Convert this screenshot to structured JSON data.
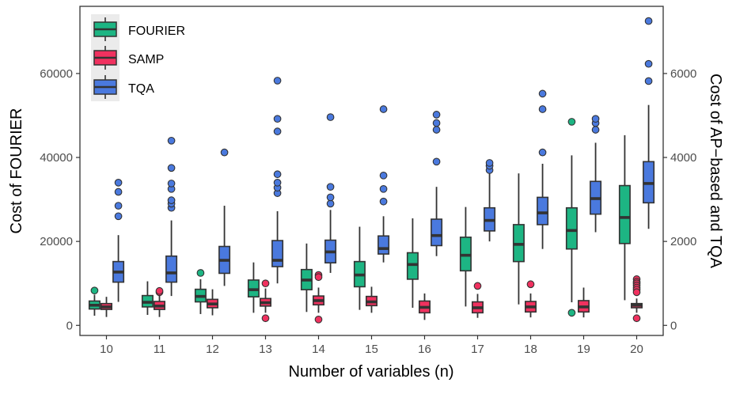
{
  "chart_data": {
    "type": "boxplot",
    "xlabel": "Number of variables (n)",
    "ylabel_left": "Cost of FOURIER",
    "ylabel_right": "Cost of AP−based and TQA",
    "categories": [
      "10",
      "11",
      "12",
      "13",
      "14",
      "15",
      "16",
      "17",
      "18",
      "19",
      "20"
    ],
    "left_axis": {
      "min": -2400,
      "max": 76000,
      "ticks": [
        0,
        20000,
        40000,
        60000
      ]
    },
    "right_axis": {
      "min": -240,
      "max": 7600,
      "ticks": [
        0,
        2000,
        4000,
        6000
      ]
    },
    "legend": {
      "placement": "top-left",
      "entries": [
        "FOURIER",
        "SAMP",
        "TQA"
      ]
    },
    "grid": false,
    "series": [
      {
        "name": "FOURIER",
        "axis": "left",
        "color": "#1db583",
        "boxes": [
          {
            "q1": 3900,
            "median": 4800,
            "q3": 5800,
            "wmin": 2300,
            "wmax": 7300,
            "outliers": [
              8300
            ]
          },
          {
            "q1": 4400,
            "median": 5500,
            "q3": 7100,
            "wmin": 2500,
            "wmax": 10500,
            "outliers": []
          },
          {
            "q1": 5600,
            "median": 6900,
            "q3": 8600,
            "wmin": 2700,
            "wmax": 11000,
            "outliers": [
              12500
            ]
          },
          {
            "q1": 6800,
            "median": 8500,
            "q3": 10800,
            "wmin": 3000,
            "wmax": 15000,
            "outliers": []
          },
          {
            "q1": 8500,
            "median": 10800,
            "q3": 13300,
            "wmin": 3200,
            "wmax": 19500,
            "outliers": []
          },
          {
            "q1": 9200,
            "median": 12000,
            "q3": 15200,
            "wmin": 3700,
            "wmax": 23500,
            "outliers": []
          },
          {
            "q1": 11000,
            "median": 14500,
            "q3": 17300,
            "wmin": 4200,
            "wmax": 25500,
            "outliers": []
          },
          {
            "q1": 13000,
            "median": 16700,
            "q3": 21000,
            "wmin": 4500,
            "wmax": 28200,
            "outliers": []
          },
          {
            "q1": 15200,
            "median": 19300,
            "q3": 24000,
            "wmin": 5000,
            "wmax": 36200,
            "outliers": []
          },
          {
            "q1": 18200,
            "median": 22600,
            "q3": 28000,
            "wmin": 5500,
            "wmax": 40500,
            "outliers": [
              48500,
              3000
            ]
          },
          {
            "q1": 19500,
            "median": 25700,
            "q3": 33300,
            "wmin": 6000,
            "wmax": 45300,
            "outliers": []
          }
        ]
      },
      {
        "name": "SAMP",
        "axis": "right",
        "color": "#f0315f",
        "boxes": [
          {
            "q1": 380,
            "median": 440,
            "q3": 520,
            "wmin": 200,
            "wmax": 680,
            "outliers": []
          },
          {
            "q1": 380,
            "median": 460,
            "q3": 570,
            "wmin": 200,
            "wmax": 750,
            "outliers": [
              790,
              820
            ]
          },
          {
            "q1": 420,
            "median": 510,
            "q3": 620,
            "wmin": 240,
            "wmax": 860,
            "outliers": []
          },
          {
            "q1": 460,
            "median": 540,
            "q3": 640,
            "wmin": 300,
            "wmax": 880,
            "outliers": [
              1000,
              170
            ]
          },
          {
            "q1": 490,
            "median": 590,
            "q3": 700,
            "wmin": 300,
            "wmax": 900,
            "outliers": [
              1200,
              1150,
              140
            ]
          },
          {
            "q1": 470,
            "median": 560,
            "q3": 690,
            "wmin": 300,
            "wmax": 920,
            "outliers": []
          },
          {
            "q1": 300,
            "median": 430,
            "q3": 580,
            "wmin": 130,
            "wmax": 760,
            "outliers": []
          },
          {
            "q1": 300,
            "median": 420,
            "q3": 560,
            "wmin": 180,
            "wmax": 750,
            "outliers": [
              940
            ]
          },
          {
            "q1": 320,
            "median": 440,
            "q3": 570,
            "wmin": 190,
            "wmax": 760,
            "outliers": [
              980
            ]
          },
          {
            "q1": 320,
            "median": 440,
            "q3": 590,
            "wmin": 190,
            "wmax": 900,
            "outliers": []
          },
          {
            "q1": 420,
            "median": 480,
            "q3": 520,
            "wmin": 300,
            "wmax": 640,
            "outliers": [
              1100,
              1040,
              1000,
              950,
              900,
              850,
              790,
              170
            ]
          }
        ]
      },
      {
        "name": "TQA",
        "axis": "right",
        "color": "#4a79de",
        "boxes": [
          {
            "q1": 1030,
            "median": 1270,
            "q3": 1520,
            "wmin": 560,
            "wmax": 2150,
            "outliers": [
              2600,
              2850,
              3180,
              3400
            ]
          },
          {
            "q1": 1030,
            "median": 1250,
            "q3": 1650,
            "wmin": 700,
            "wmax": 2500,
            "outliers": [
              2800,
              2900,
              2980,
              3250,
              3380,
              3750,
              4400
            ]
          },
          {
            "q1": 1240,
            "median": 1550,
            "q3": 1880,
            "wmin": 940,
            "wmax": 2850,
            "outliers": [
              4120
            ]
          },
          {
            "q1": 1400,
            "median": 1550,
            "q3": 2020,
            "wmin": 1000,
            "wmax": 2720,
            "outliers": [
              3150,
              3280,
              3400,
              3600,
              4620,
              4920,
              5830
            ]
          },
          {
            "q1": 1490,
            "median": 1750,
            "q3": 2030,
            "wmin": 1250,
            "wmax": 2750,
            "outliers": [
              2900,
              3050,
              3300,
              4960
            ]
          },
          {
            "q1": 1700,
            "median": 1830,
            "q3": 2130,
            "wmin": 1500,
            "wmax": 2600,
            "outliers": [
              2950,
              3250,
              3570,
              5150
            ]
          },
          {
            "q1": 1900,
            "median": 2140,
            "q3": 2530,
            "wmin": 1650,
            "wmax": 3300,
            "outliers": [
              3900,
              4660,
              4820,
              5020
            ]
          },
          {
            "q1": 2250,
            "median": 2500,
            "q3": 2800,
            "wmin": 2000,
            "wmax": 3620,
            "outliers": [
              3700,
              3800,
              3870
            ]
          },
          {
            "q1": 2400,
            "median": 2680,
            "q3": 3050,
            "wmin": 1820,
            "wmax": 3850,
            "outliers": [
              4120,
              5150,
              5520
            ]
          },
          {
            "q1": 2650,
            "median": 3020,
            "q3": 3430,
            "wmin": 2220,
            "wmax": 4350,
            "outliers": [
              4660,
              4820,
              4920
            ]
          },
          {
            "q1": 2920,
            "median": 3380,
            "q3": 3900,
            "wmin": 2300,
            "wmax": 5250,
            "outliers": [
              5820,
              6230,
              7250
            ]
          }
        ]
      }
    ]
  }
}
